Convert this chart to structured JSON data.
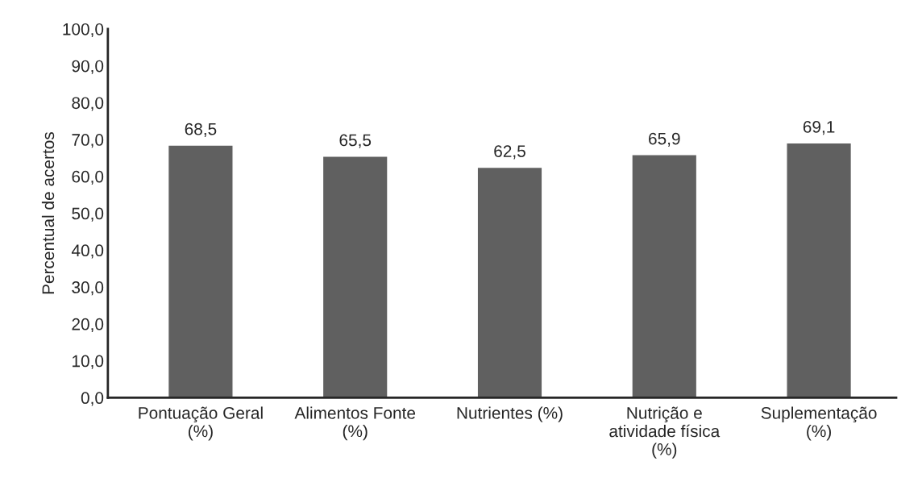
{
  "chart_data": {
    "type": "bar",
    "ylabel": "Percentual de acertos",
    "categories": [
      "Pontuação Geral\n(%)",
      "Alimentos Fonte\n(%)",
      "Nutrientes (%)",
      "Nutrição e\natividade física\n(%)",
      "Suplementação\n(%)"
    ],
    "values": [
      68.5,
      65.5,
      62.5,
      65.9,
      69.1
    ],
    "value_labels": [
      "68,5",
      "65,5",
      "62,5",
      "65,9",
      "69,1"
    ],
    "color": "#606060",
    "ylim": [
      0,
      100
    ],
    "yticks": [
      {
        "value": 0,
        "label": "0,0"
      },
      {
        "value": 10,
        "label": "10,0"
      },
      {
        "value": 20,
        "label": "20,0"
      },
      {
        "value": 30,
        "label": "30,0"
      },
      {
        "value": 40,
        "label": "40,0"
      },
      {
        "value": 50,
        "label": "50,0"
      },
      {
        "value": 60,
        "label": "60,0"
      },
      {
        "value": 70,
        "label": "70,0"
      },
      {
        "value": 80,
        "label": "80,0"
      },
      {
        "value": 90,
        "label": "90,0"
      },
      {
        "value": 100,
        "label": "100,0"
      }
    ],
    "grid": false,
    "legend": false
  }
}
